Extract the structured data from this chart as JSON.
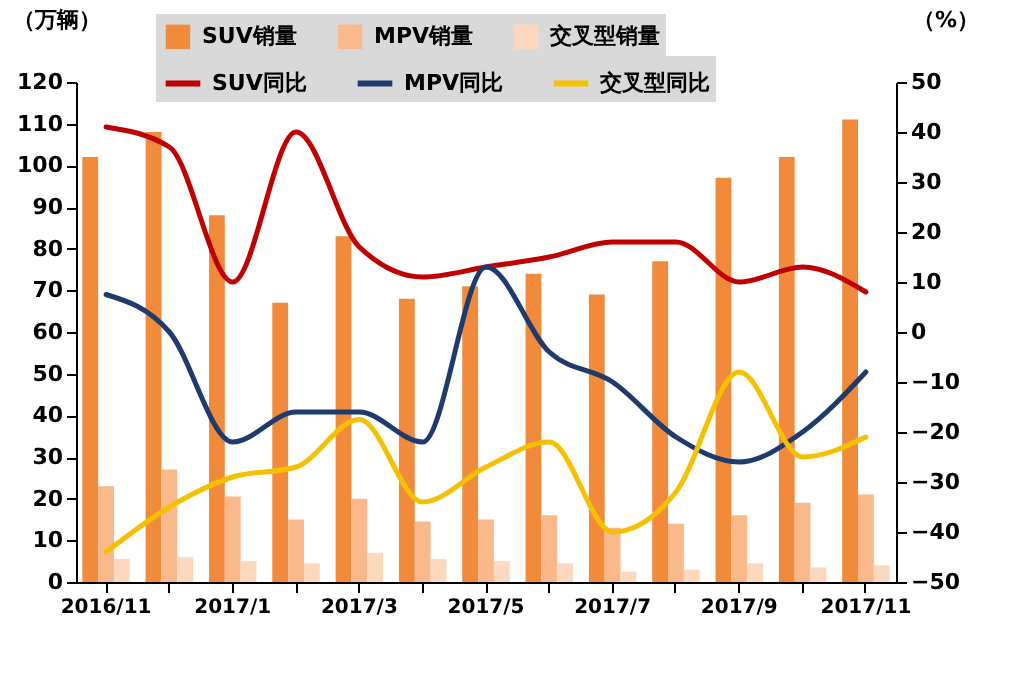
{
  "chart_data": {
    "type": "bar",
    "ylabel": "（万辆）",
    "y2label": "（%）",
    "categories": [
      "2016/11",
      null,
      "2017/1",
      null,
      "2017/3",
      null,
      "2017/5",
      null,
      "2017/7",
      null,
      "2017/9",
      null,
      "2017/11"
    ],
    "series": [
      {
        "name": "SUV销量",
        "color": "#f28a3c",
        "values": [
          102,
          108,
          88,
          67,
          83,
          68,
          71,
          74,
          69,
          77,
          97,
          102,
          111
        ]
      },
      {
        "name": "MPV销量",
        "color": "#f9b98a",
        "values": [
          23,
          27,
          20.5,
          15,
          20,
          14.5,
          15,
          16,
          13,
          14,
          16,
          19,
          21
        ]
      },
      {
        "name": "交叉型销量",
        "color": "#fcd9be",
        "values": [
          5.5,
          6,
          5,
          4.5,
          7,
          5.5,
          5,
          4.5,
          2.5,
          3,
          4.5,
          3.5,
          4
        ]
      },
      {
        "name": "SUV同比",
        "type": "line",
        "axis": "y2",
        "color": "#c00000",
        "values": [
          41,
          37,
          10,
          40,
          17,
          11,
          13,
          15,
          18,
          18,
          10,
          13,
          8
        ]
      },
      {
        "name": "MPV同比",
        "type": "line",
        "axis": "y2",
        "color": "#1f3b6e",
        "values": [
          7.5,
          0,
          -22,
          -16,
          -16,
          -22,
          13,
          -4,
          -10,
          -21,
          -26,
          -20,
          -8
        ]
      },
      {
        "name": "交叉型同比",
        "type": "line",
        "axis": "y2",
        "color": "#f5c000",
        "values": [
          -44,
          -35,
          -29,
          -27,
          -17.5,
          -34,
          -27,
          -22,
          -40,
          -32,
          -8,
          -25,
          -21
        ]
      }
    ],
    "ylim": [
      0,
      120
    ],
    "yticks": [
      0,
      10,
      20,
      30,
      40,
      50,
      60,
      70,
      80,
      90,
      100,
      110,
      120
    ],
    "y2lim": [
      -50,
      50
    ],
    "y2ticks": [
      -50,
      -40,
      -30,
      -20,
      -10,
      0,
      10,
      20,
      30,
      40,
      50
    ],
    "legend": "top",
    "grid": false,
    "marker": "none",
    "line_style": "solid"
  }
}
